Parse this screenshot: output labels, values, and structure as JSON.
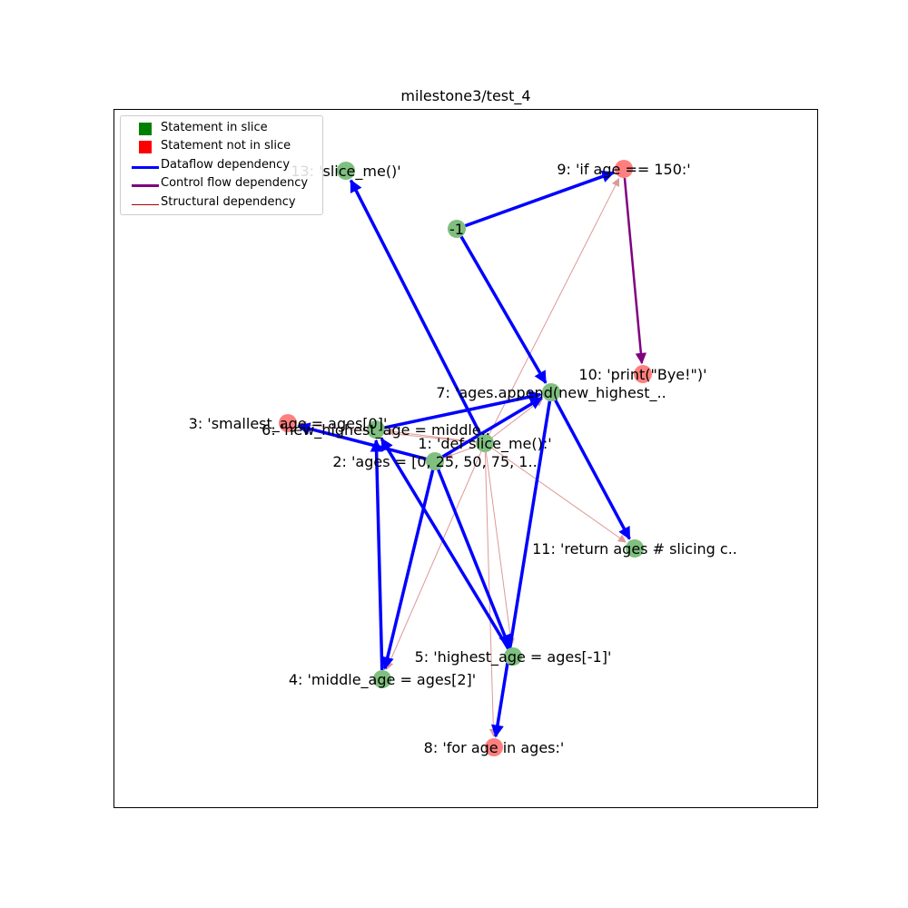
{
  "title": "milestone3/test_4",
  "legend": {
    "in_slice": "Statement in slice",
    "not_in_slice": "Statement not in slice",
    "dataflow": "Dataflow dependency",
    "control": "Control flow dependency",
    "structural": "Structural dependency"
  },
  "colors": {
    "in_slice": "#7fbf7f",
    "not_in_slice": "#ff7f7f",
    "legend_in_slice": "#008000",
    "legend_not_in_slice": "#ff0000",
    "dataflow": "#0000ff",
    "control": "#800080",
    "structural": "#dd9999",
    "legend_structural": "#aa0000"
  },
  "nodes": [
    {
      "id": "n13",
      "label": "13: 'slice_me()'",
      "in_slice": true
    },
    {
      "id": "n9",
      "label": "9: 'if age == 150:'",
      "in_slice": false
    },
    {
      "id": "nm1",
      "label": "-1",
      "in_slice": true
    },
    {
      "id": "n10",
      "label": "10: 'print(\"Bye!\")'",
      "in_slice": false
    },
    {
      "id": "n7",
      "label": "7: 'ages.append(new_highest_..",
      "in_slice": true
    },
    {
      "id": "n3",
      "label": "3: 'smallest_age = ages[0]'",
      "in_slice": false
    },
    {
      "id": "n6",
      "label": "6: 'new_highest_age = middle..",
      "in_slice": true
    },
    {
      "id": "n1",
      "label": "1: 'def slice_me():'",
      "in_slice": true
    },
    {
      "id": "n2",
      "label": "2: 'ages = [0, 25, 50, 75, 1..",
      "in_slice": true
    },
    {
      "id": "n11",
      "label": "11: 'return ages # slicing c..",
      "in_slice": true
    },
    {
      "id": "n5",
      "label": "5: 'highest_age = ages[-1]'",
      "in_slice": true
    },
    {
      "id": "n4",
      "label": "4: 'middle_age = ages[2]'",
      "in_slice": true
    },
    {
      "id": "n8",
      "label": "8: 'for age in ages:'",
      "in_slice": false
    }
  ],
  "edges": [
    {
      "from": "n1",
      "to": "n2",
      "type": "structural"
    },
    {
      "from": "n1",
      "to": "n3",
      "type": "structural"
    },
    {
      "from": "n1",
      "to": "n4",
      "type": "structural"
    },
    {
      "from": "n1",
      "to": "n5",
      "type": "structural"
    },
    {
      "from": "n1",
      "to": "n6",
      "type": "structural"
    },
    {
      "from": "n1",
      "to": "n7",
      "type": "structural"
    },
    {
      "from": "n1",
      "to": "n8",
      "type": "structural"
    },
    {
      "from": "n1",
      "to": "n9",
      "type": "structural"
    },
    {
      "from": "n1",
      "to": "n11",
      "type": "structural"
    },
    {
      "from": "n9",
      "to": "n10",
      "type": "control"
    },
    {
      "from": "n1",
      "to": "n13",
      "type": "dataflow"
    },
    {
      "from": "nm1",
      "to": "n9",
      "type": "dataflow"
    },
    {
      "from": "nm1",
      "to": "n7",
      "type": "dataflow"
    },
    {
      "from": "n2",
      "to": "n3",
      "type": "dataflow"
    },
    {
      "from": "n2",
      "to": "n4",
      "type": "dataflow"
    },
    {
      "from": "n2",
      "to": "n5",
      "type": "dataflow"
    },
    {
      "from": "n2",
      "to": "n7",
      "type": "dataflow"
    },
    {
      "from": "n4",
      "to": "n6",
      "type": "dataflow"
    },
    {
      "from": "n5",
      "to": "n6",
      "type": "dataflow"
    },
    {
      "from": "n6",
      "to": "n7",
      "type": "dataflow"
    },
    {
      "from": "n7",
      "to": "n11",
      "type": "dataflow"
    },
    {
      "from": "n7",
      "to": "n8",
      "type": "dataflow"
    }
  ]
}
